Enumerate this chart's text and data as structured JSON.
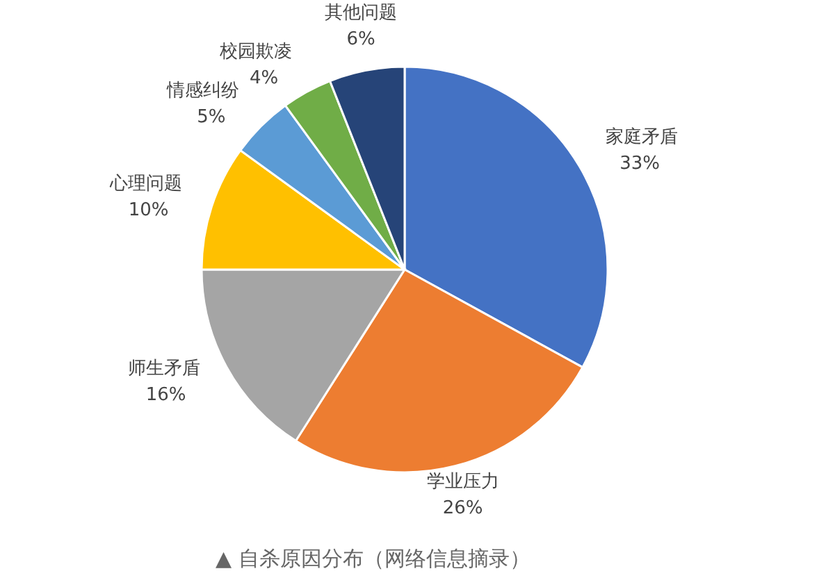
{
  "chart_data": {
    "type": "pie",
    "categories": [
      "家庭矛盾",
      "学业压力",
      "师生矛盾",
      "心理问题",
      "情感纠纷",
      "校园欺凌",
      "其他问题"
    ],
    "values": [
      33,
      26,
      16,
      10,
      5,
      4,
      6
    ],
    "colors": [
      "#4472c4",
      "#ed7d31",
      "#a5a5a5",
      "#ffc000",
      "#5b9bd5",
      "#70ad47",
      "#264478"
    ],
    "value_labels": [
      "33%",
      "26%",
      "16%",
      "10%",
      "5%",
      "4%",
      "6%"
    ],
    "annotations": [
      "▲ 自杀原因分布（网络信息摘录）"
    ]
  }
}
